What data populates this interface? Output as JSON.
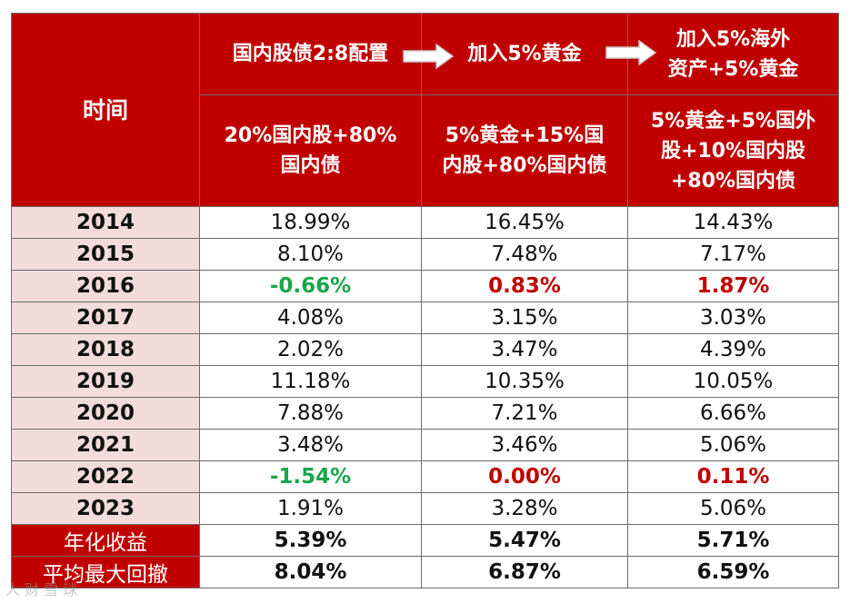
{
  "header": {
    "time_label": "时间",
    "stage1": "国内股债2:8配置",
    "stage2": "加入5%黄金",
    "stage3_line1": "加入5%海外",
    "stage3_line2": "资产+5%黄金",
    "col1_line1": "20%国内股+80%",
    "col1_line2": "国内债",
    "col2_line1": "5%黄金+15%国",
    "col2_line2": "内股+80%国内债",
    "col3_line1": "5%黄金+5%国外",
    "col3_line2": "股+10%国内股",
    "col3_line3": "+80%国内债"
  },
  "rows": [
    {
      "year": "2014",
      "v1": "18.99%",
      "v2": "16.45%",
      "v3": "14.43%"
    },
    {
      "year": "2015",
      "v1": "8.10%",
      "v2": "7.48%",
      "v3": "7.17%"
    },
    {
      "year": "2016",
      "v1": "-0.66%",
      "v2": "0.83%",
      "v3": "1.87%"
    },
    {
      "year": "2017",
      "v1": "4.08%",
      "v2": "3.15%",
      "v3": "3.03%"
    },
    {
      "year": "2018",
      "v1": "2.02%",
      "v2": "3.47%",
      "v3": "4.39%"
    },
    {
      "year": "2019",
      "v1": "11.18%",
      "v2": "10.35%",
      "v3": "10.05%"
    },
    {
      "year": "2020",
      "v1": "7.88%",
      "v2": "7.21%",
      "v3": "6.66%"
    },
    {
      "year": "2021",
      "v1": "3.48%",
      "v2": "3.46%",
      "v3": "5.06%"
    },
    {
      "year": "2022",
      "v1": "-1.54%",
      "v2": "0.00%",
      "v3": "0.11%"
    },
    {
      "year": "2023",
      "v1": "1.91%",
      "v2": "3.28%",
      "v3": "5.06%"
    }
  ],
  "footer": {
    "annual_label": "年化收益",
    "annual_v1": "5.39%",
    "annual_v2": "5.47%",
    "annual_v3": "5.71%",
    "drawdown_label": "平均最大回撤",
    "drawdown_v1": "8.04%",
    "drawdown_v2": "6.87%",
    "drawdown_v3": "6.59%"
  },
  "colors": {
    "header_red": "#c00000",
    "year_pink": "#f2dcdb",
    "negative_green": "#1aa64a",
    "highlight_red": "#c00000"
  },
  "watermark": "人 财 雪 球"
}
